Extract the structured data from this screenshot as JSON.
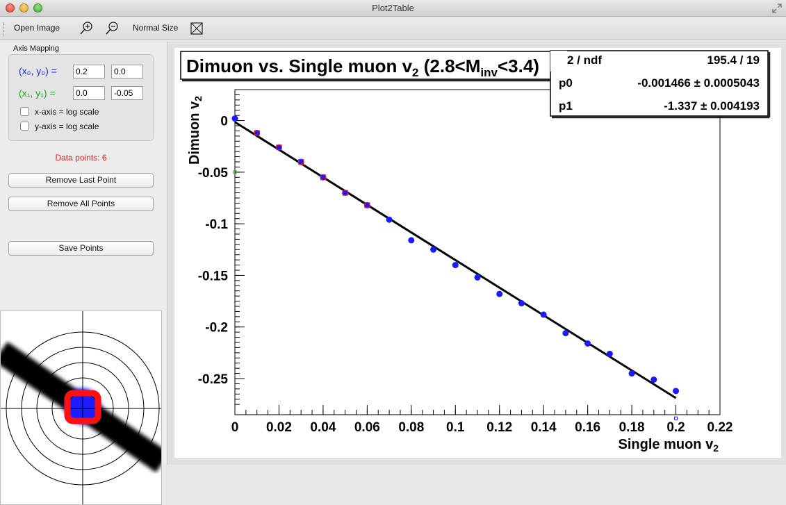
{
  "window": {
    "title": "Plot2Table"
  },
  "toolbar": {
    "open_image": "Open Image",
    "zoom_in_icon": "zoom-in-icon",
    "zoom_out_icon": "zoom-out-icon",
    "normal_size": "Normal Size",
    "fit_icon": "fit-window-icon"
  },
  "axis_mapping": {
    "title": "Axis Mapping",
    "row0_label": "(x₀, y₀) =",
    "row1_label": "(x₁, y₁) =",
    "x0": "0.2",
    "y0": "0.0",
    "x1": "0.0",
    "y1": "-0.05",
    "xlog_label": "x-axis = log scale",
    "ylog_label": "y-axis = log scale",
    "xlog_checked": false,
    "ylog_checked": false
  },
  "status": {
    "data_points": "Data points: 6"
  },
  "buttons": {
    "remove_last": "Remove Last Point",
    "remove_all": "Remove All Points",
    "save_points": "Save Points"
  },
  "colors": {
    "x_row": "#1e2fd6",
    "y_row": "#1ea81e",
    "data_points_text": "#e02020",
    "marker": "#1a1aff",
    "fit_line": "#000000"
  },
  "chart_data": {
    "type": "scatter",
    "title": "Dimuon vs. Single muon v",
    "title_sub": "2",
    "title_tail_a": " (2.8<M",
    "title_tail_sub": "inv",
    "title_tail_b": "<3.4)",
    "xlabel": "Single muon v",
    "xlabel_sub": "2",
    "ylabel": "Dimuon v",
    "ylabel_sub": "2",
    "xlim": [
      0,
      0.22
    ],
    "ylim": [
      -0.285,
      0.03
    ],
    "xticks": [
      "0",
      "0.02",
      "0.04",
      "0.06",
      "0.08",
      "0.1",
      "0.12",
      "0.14",
      "0.16",
      "0.18",
      "0.2",
      "0.22"
    ],
    "yticks": [
      "0",
      "-0.05",
      "-0.1",
      "-0.15",
      "-0.2",
      "-0.25"
    ],
    "x": [
      0,
      0.01,
      0.02,
      0.03,
      0.04,
      0.05,
      0.06,
      0.07,
      0.08,
      0.09,
      0.1,
      0.11,
      0.12,
      0.13,
      0.14,
      0.15,
      0.16,
      0.17,
      0.18,
      0.19,
      0.2
    ],
    "y": [
      0.002,
      -0.012,
      -0.026,
      -0.04,
      -0.055,
      -0.07,
      -0.082,
      -0.096,
      -0.116,
      -0.125,
      -0.14,
      -0.152,
      -0.168,
      -0.177,
      -0.188,
      -0.206,
      -0.216,
      -0.226,
      -0.245,
      -0.251,
      -0.262
    ],
    "marked_x": [
      0.01,
      0.02,
      0.03,
      0.04,
      0.05,
      0.06
    ],
    "fit": {
      "p0": -0.001466,
      "p1": -1.337,
      "x_range": [
        0,
        0.2
      ]
    },
    "stats": {
      "chi2_label": "2 / ndf",
      "chi2_value": "195.4 / 19",
      "p0_label": "p0",
      "p0_value": "-0.001466 ± 0.0005043",
      "p1_label": "p1",
      "p1_value": "-1.337 ± 0.004193"
    }
  }
}
